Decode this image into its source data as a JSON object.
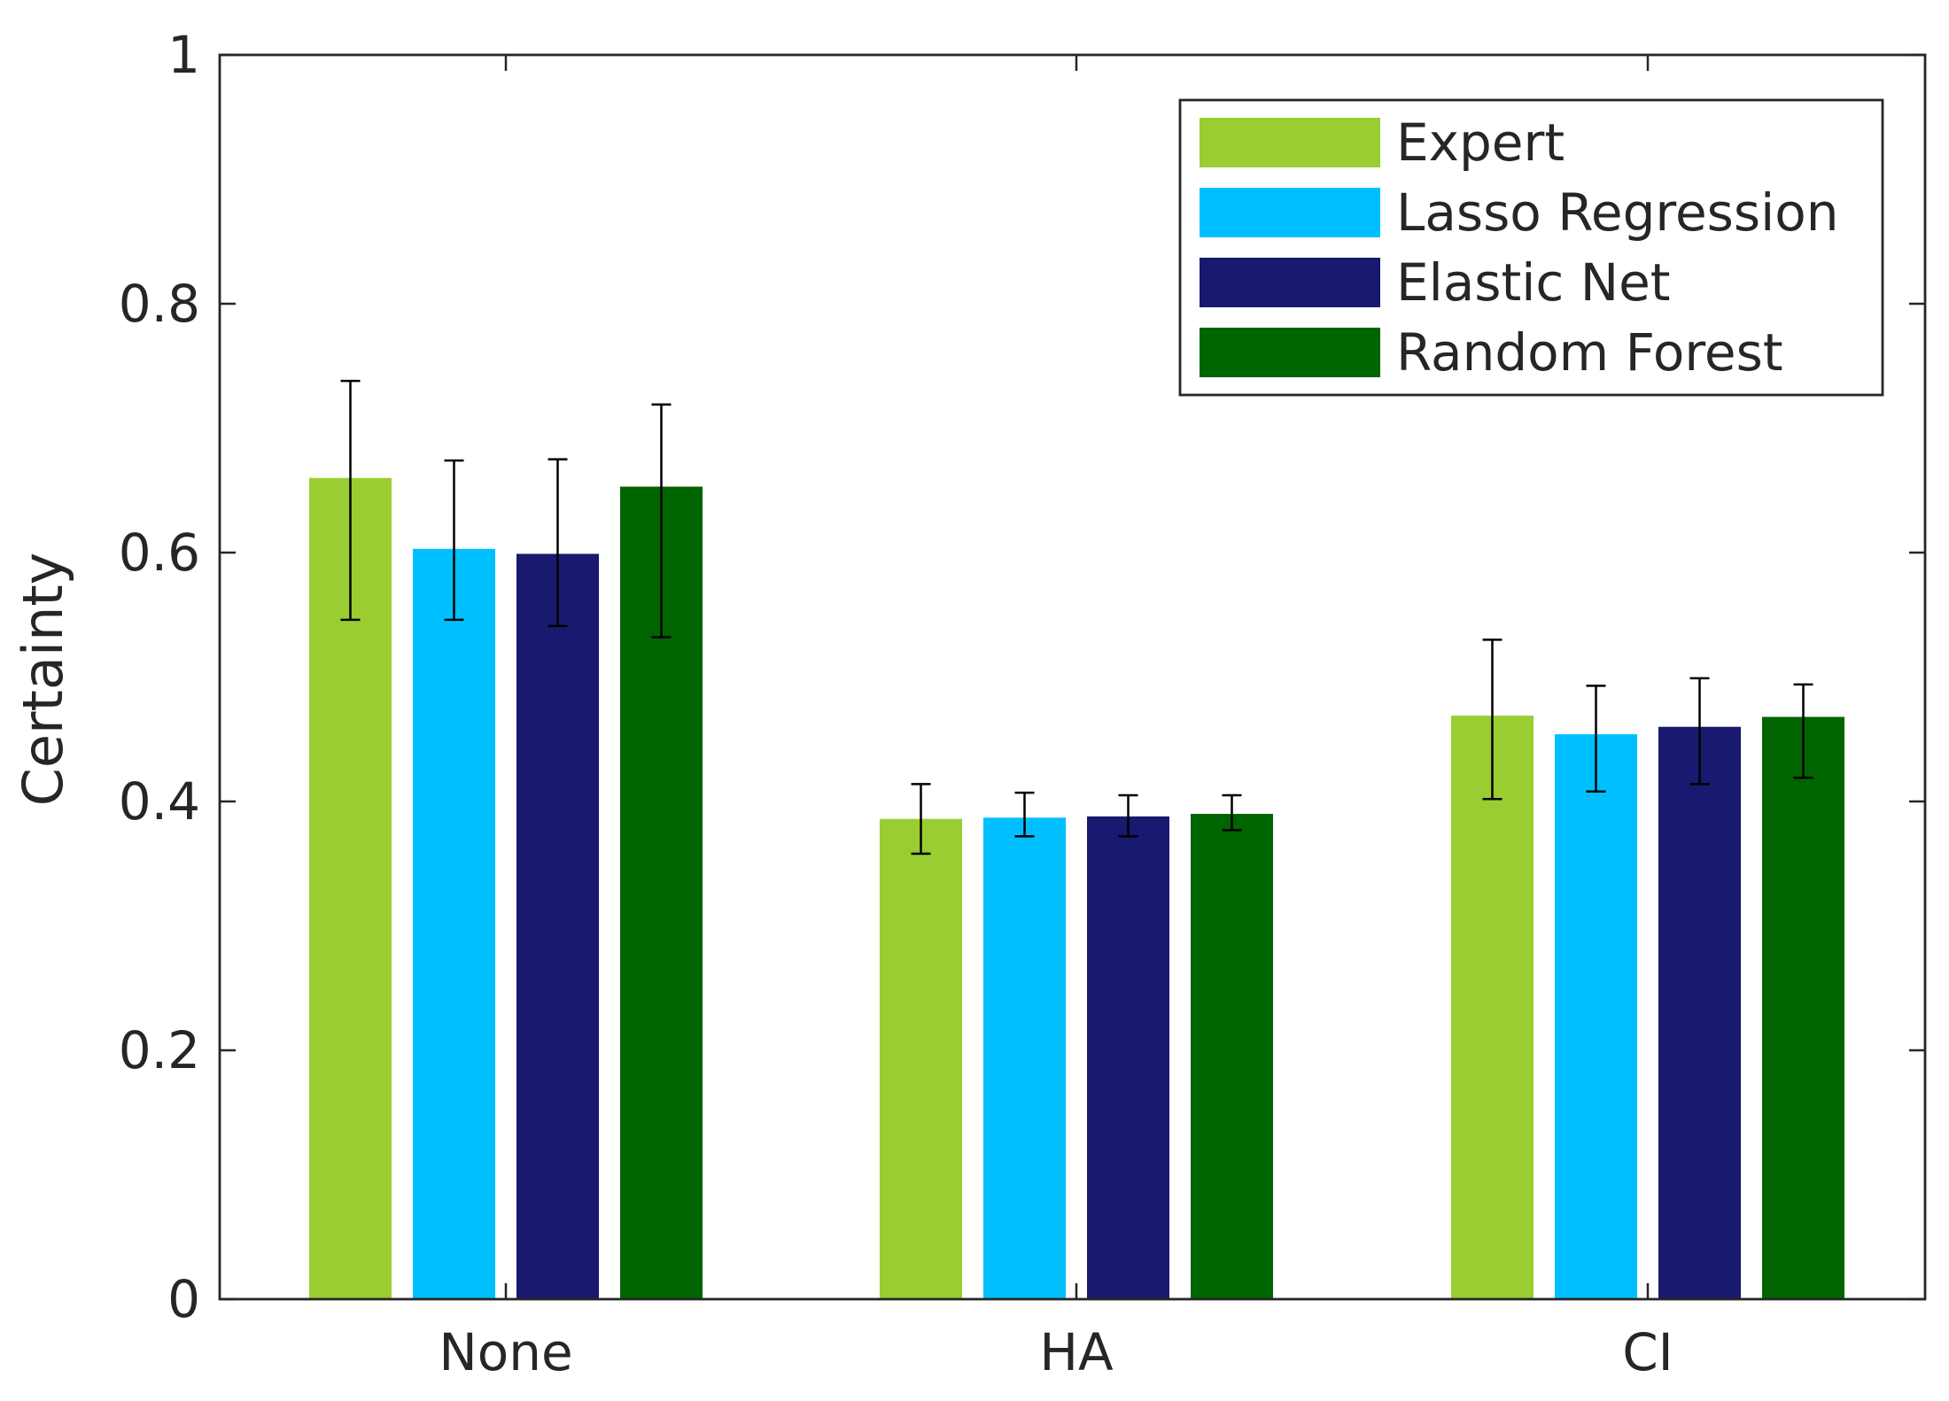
{
  "chart_data": {
    "type": "bar",
    "title": "",
    "xlabel": "",
    "ylabel": "Certainty",
    "ylim": [
      0,
      1
    ],
    "yticks": [
      0,
      0.2,
      0.4,
      0.6,
      0.8,
      1
    ],
    "ytick_labels": [
      "0",
      "0.2",
      "0.4",
      "0.6",
      "0.8",
      "1"
    ],
    "grid": false,
    "legend_position": "top-right",
    "categories": [
      "None",
      "HA",
      "CI"
    ],
    "series": [
      {
        "name": "Expert",
        "color": "#9ACD32",
        "values": [
          0.66,
          0.386,
          0.469
        ],
        "error_low": [
          0.546,
          0.358,
          0.402
        ],
        "error_high": [
          0.738,
          0.414,
          0.53
        ]
      },
      {
        "name": "Lasso Regression",
        "color": "#00BFFF",
        "values": [
          0.603,
          0.387,
          0.454
        ],
        "error_low": [
          0.546,
          0.372,
          0.408
        ],
        "error_high": [
          0.674,
          0.407,
          0.493
        ]
      },
      {
        "name": "Elastic Net",
        "color": "#191970",
        "values": [
          0.599,
          0.388,
          0.46
        ],
        "error_low": [
          0.541,
          0.372,
          0.414
        ],
        "error_high": [
          0.675,
          0.405,
          0.499
        ]
      },
      {
        "name": "Random Forest",
        "color": "#006400",
        "values": [
          0.653,
          0.39,
          0.468
        ],
        "error_low": [
          0.532,
          0.377,
          0.419
        ],
        "error_high": [
          0.719,
          0.405,
          0.494
        ]
      }
    ]
  }
}
